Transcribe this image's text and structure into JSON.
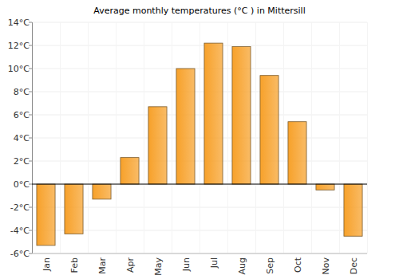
{
  "chart_data": {
    "type": "bar",
    "title": "Average monthly temperatures (°C ) in Mittersill",
    "categories": [
      "Jan",
      "Feb",
      "Mar",
      "Apr",
      "May",
      "Jun",
      "Jul",
      "Aug",
      "Sep",
      "Oct",
      "Nov",
      "Dec"
    ],
    "values": [
      -5.3,
      -4.3,
      -1.3,
      2.3,
      6.7,
      10.0,
      12.2,
      11.9,
      9.4,
      5.4,
      -0.5,
      -4.5
    ],
    "color": "#f7a12a",
    "ylim": [
      -6,
      14
    ],
    "yticks": [
      {
        "value": -6,
        "label": "-6°C"
      },
      {
        "value": -4,
        "label": "-4°C"
      },
      {
        "value": -2,
        "label": "-2°C"
      },
      {
        "value": 0,
        "label": "0°C"
      },
      {
        "value": 2,
        "label": "2°C"
      },
      {
        "value": 4,
        "label": "4°C"
      },
      {
        "value": 6,
        "label": "6°C"
      },
      {
        "value": 8,
        "label": "8°C"
      },
      {
        "value": 10,
        "label": "10°C"
      },
      {
        "value": 12,
        "label": "12°C"
      },
      {
        "value": 14,
        "label": "14°C"
      }
    ],
    "grid": true
  }
}
